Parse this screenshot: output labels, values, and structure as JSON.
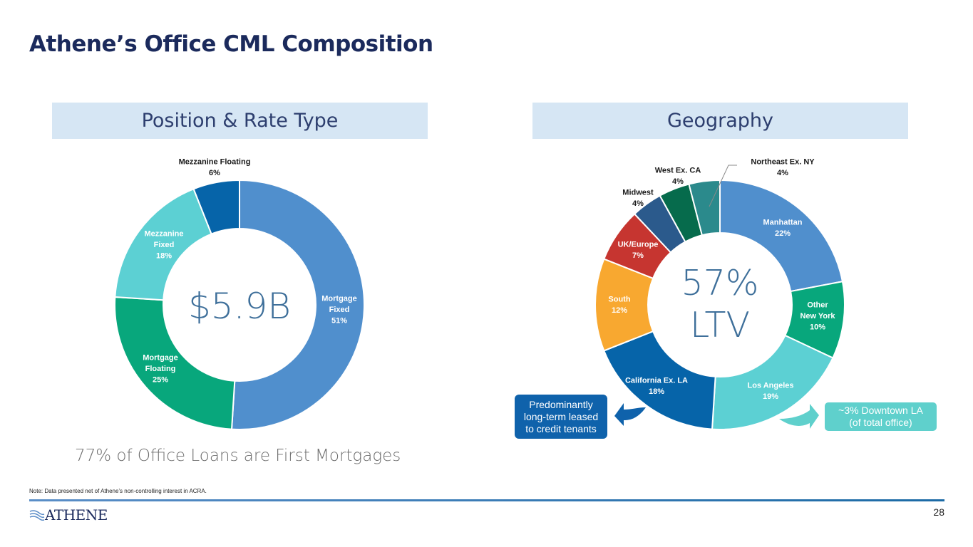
{
  "page": {
    "title": "Athene’s Office CML Composition",
    "subtitle": "77% of Office Loans are First Mortgages",
    "note": "Note: Data presented net of Athene’s non-controlling interest in ACRA.",
    "page_number": "28",
    "logo_text": "ATHENE"
  },
  "chart_data": [
    {
      "type": "pie",
      "variant": "donut",
      "title": "Position & Rate Type",
      "center_label": "$5.9B",
      "slices": [
        {
          "name": "Mortgage Fixed",
          "lines": [
            "Mortgage",
            "Fixed",
            "51%"
          ],
          "value": 51,
          "color": "#508fcd",
          "label_color": "#ffffff"
        },
        {
          "name": "Mortgage Floating",
          "lines": [
            "Mortgage",
            "Floating",
            "25%"
          ],
          "value": 25,
          "color": "#08a77c",
          "label_color": "#ffffff"
        },
        {
          "name": "Mezzanine Fixed",
          "lines": [
            "Mezzanine",
            "Fixed",
            "18%"
          ],
          "value": 18,
          "color": "#5cd0d3",
          "label_color": "#ffffff"
        },
        {
          "name": "Mezzanine Floating",
          "lines": [
            "Mezzanine Floating",
            "6%"
          ],
          "value": 6,
          "color": "#0664a9",
          "label_color": "#1a1a1a"
        }
      ]
    },
    {
      "type": "pie",
      "variant": "donut",
      "title": "Geography",
      "center_label": [
        "57%",
        "LTV"
      ],
      "slices": [
        {
          "name": "Manhattan",
          "lines": [
            "Manhattan",
            "22%"
          ],
          "value": 22,
          "color": "#508fcd",
          "label_color": "#ffffff"
        },
        {
          "name": "Other New York",
          "lines": [
            "Other",
            "New York",
            "10%"
          ],
          "value": 10,
          "color": "#08a77c",
          "label_color": "#ffffff"
        },
        {
          "name": "Los Angeles",
          "lines": [
            "Los Angeles",
            "19%"
          ],
          "value": 19,
          "color": "#5cd0d3",
          "label_color": "#ffffff"
        },
        {
          "name": "California Ex. LA",
          "lines": [
            "California Ex. LA",
            "18%"
          ],
          "value": 18,
          "color": "#0664a9",
          "label_color": "#ffffff"
        },
        {
          "name": "South",
          "lines": [
            "South",
            "12%"
          ],
          "value": 12,
          "color": "#f8a830",
          "label_color": "#ffffff"
        },
        {
          "name": "UK/Europe",
          "lines": [
            "UK/Europe",
            "7%"
          ],
          "value": 7,
          "color": "#c63530",
          "label_color": "#ffffff"
        },
        {
          "name": "Midwest",
          "lines": [
            "Midwest",
            "4%"
          ],
          "value": 4,
          "color": "#2b5a8c",
          "label_color": "#1a1a1a"
        },
        {
          "name": "West Ex. CA",
          "lines": [
            "West Ex. CA",
            "4%"
          ],
          "value": 4,
          "color": "#066b4c",
          "label_color": "#1a1a1a"
        },
        {
          "name": "Northeast Ex. NY",
          "lines": [
            "Northeast Ex. NY",
            "4%"
          ],
          "value": 4,
          "color": "#2b8a8c",
          "label_color": "#1a1a1a"
        }
      ],
      "callouts": [
        {
          "name": "california-callout",
          "text": [
            "Predominantly",
            "long-term leased",
            "to credit tenants"
          ],
          "color": "#0f62ab"
        },
        {
          "name": "los-angeles-callout",
          "text": [
            "~3% Downtown LA",
            "(of total office)"
          ],
          "color": "#5fd0cc"
        }
      ]
    }
  ]
}
